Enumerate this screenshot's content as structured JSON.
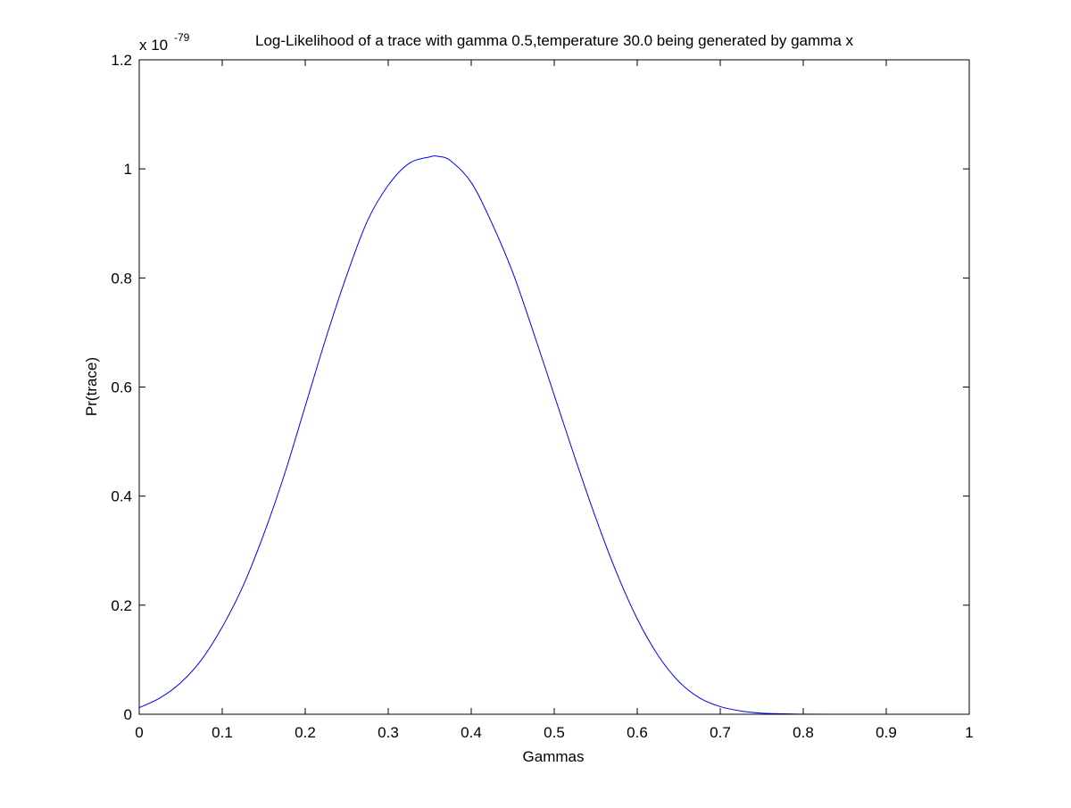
{
  "chart_data": {
    "type": "line",
    "title": "Log-Likelihood of a trace with gamma 0.5,temperature 30.0 being generated by gamma x",
    "xlabel": "Gammas",
    "ylabel": "Pr(trace)",
    "y_exponent_label": "x 10",
    "y_exponent": "-79",
    "xlim": [
      0,
      1
    ],
    "ylim": [
      0,
      1.2
    ],
    "xticks": [
      "0",
      "0.1",
      "0.2",
      "0.3",
      "0.4",
      "0.5",
      "0.6",
      "0.7",
      "0.8",
      "0.9",
      "1"
    ],
    "yticks": [
      "0",
      "0.2",
      "0.4",
      "0.6",
      "0.8",
      "1",
      "1.2"
    ],
    "grid": false,
    "line_color": "#0000ff",
    "series": [
      {
        "x": [
          0.0,
          0.025,
          0.05,
          0.075,
          0.1,
          0.125,
          0.15,
          0.175,
          0.2,
          0.225,
          0.25,
          0.275,
          0.3,
          0.325,
          0.35,
          0.36,
          0.375,
          0.4,
          0.425,
          0.45,
          0.475,
          0.5,
          0.525,
          0.55,
          0.575,
          0.6,
          0.625,
          0.65,
          0.675,
          0.7,
          0.725,
          0.75,
          0.775,
          0.8,
          0.85,
          0.9,
          0.95,
          0.975
        ],
        "y": [
          0.012,
          0.03,
          0.058,
          0.1,
          0.16,
          0.235,
          0.33,
          0.44,
          0.565,
          0.69,
          0.805,
          0.905,
          0.97,
          1.01,
          1.022,
          1.023,
          1.015,
          0.975,
          0.9,
          0.81,
          0.7,
          0.585,
          0.47,
          0.36,
          0.26,
          0.175,
          0.108,
          0.06,
          0.03,
          0.014,
          0.006,
          0.002,
          0.0008,
          0.0002,
          0.0,
          0.0,
          0.0,
          0.0
        ]
      }
    ]
  }
}
